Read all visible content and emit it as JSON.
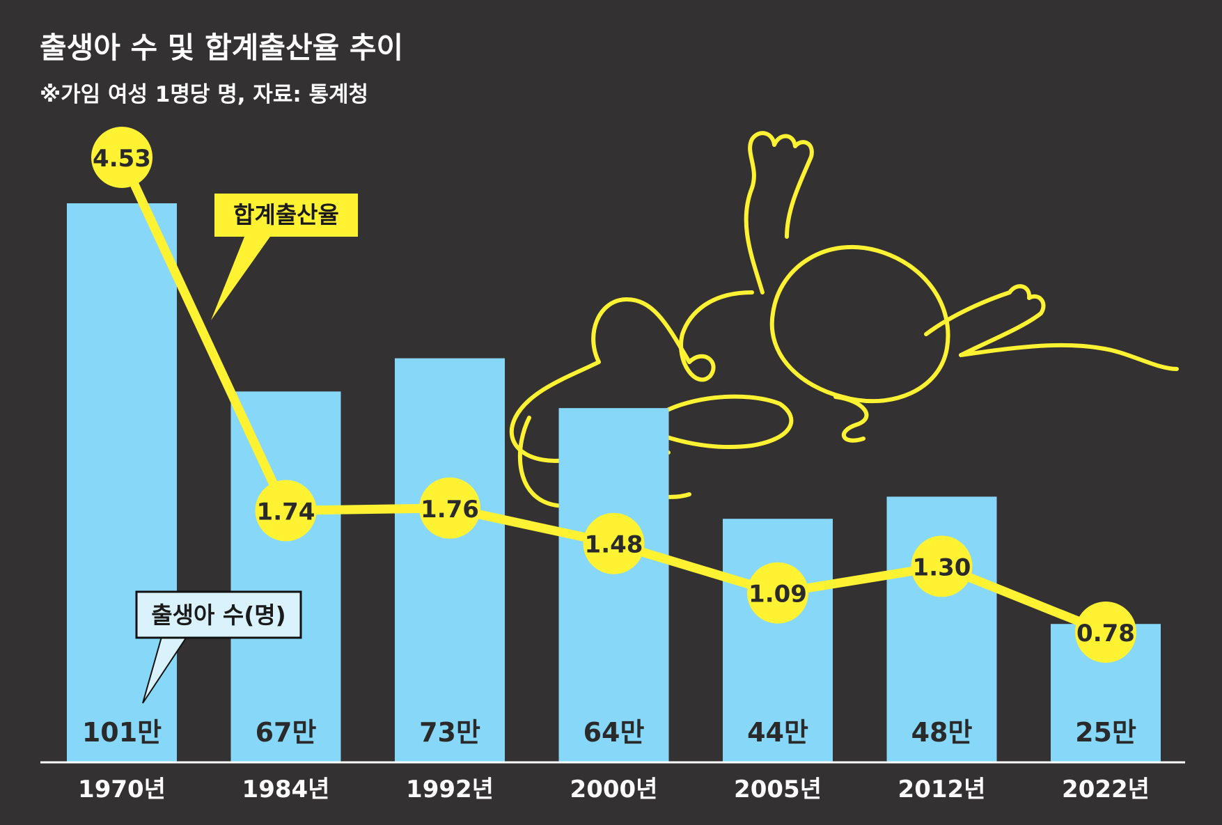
{
  "chart_data": {
    "type": "bar",
    "title": "출생아 수 및 합계출산율 추이",
    "subtitle": "※가임 여성 1명당 명, 자료: 통계청",
    "categories": [
      "1970년",
      "1984년",
      "1992년",
      "2000년",
      "2005년",
      "2012년",
      "2022년"
    ],
    "series": [
      {
        "name": "출생아 수(명)",
        "type": "bar",
        "values": [
          1010000,
          670000,
          730000,
          640000,
          440000,
          480000,
          250000
        ],
        "labels": [
          "101만",
          "67만",
          "73만",
          "64만",
          "44만",
          "48만",
          "25만"
        ]
      },
      {
        "name": "합계출산율",
        "type": "line",
        "values": [
          4.53,
          1.74,
          1.76,
          1.48,
          1.09,
          1.3,
          0.78
        ],
        "labels": [
          "4.53",
          "1.74",
          "1.76",
          "1.48",
          "1.09",
          "1.30",
          "0.78"
        ]
      }
    ],
    "colors": {
      "background": "#333132",
      "bar": "#86d7f8",
      "line": "#fff232",
      "bar_callout": "#d9f2fb",
      "line_callout": "#fff232",
      "text_light": "#ffffff",
      "text_dark": "#2a2a2a"
    },
    "legend": "inline-callouts"
  }
}
